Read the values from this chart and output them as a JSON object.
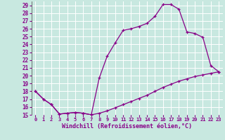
{
  "xlabel": "Windchill (Refroidissement éolien,°C)",
  "background_color": "#c8e8e0",
  "line_color": "#880088",
  "grid_color": "#ffffff",
  "xlim": [
    -0.5,
    23.5
  ],
  "ylim": [
    15,
    29.5
  ],
  "xticks": [
    0,
    1,
    2,
    3,
    4,
    5,
    6,
    7,
    8,
    9,
    10,
    11,
    12,
    13,
    14,
    15,
    16,
    17,
    18,
    19,
    20,
    21,
    22,
    23
  ],
  "yticks": [
    15,
    16,
    17,
    18,
    19,
    20,
    21,
    22,
    23,
    24,
    25,
    26,
    27,
    28,
    29
  ],
  "line1_x": [
    0,
    1,
    2,
    3,
    4,
    5,
    6,
    7,
    8,
    9,
    10,
    11,
    12,
    13,
    14,
    15,
    16,
    17,
    18,
    19,
    20,
    21,
    22,
    23
  ],
  "line1_y": [
    18,
    17,
    16.3,
    15.1,
    15.2,
    15.3,
    15.2,
    15.0,
    15.2,
    15.5,
    15.9,
    16.3,
    16.7,
    17.1,
    17.5,
    18.0,
    18.5,
    18.9,
    19.3,
    19.6,
    19.9,
    20.1,
    20.3,
    20.5
  ],
  "line2_x": [
    0,
    1,
    2,
    3,
    4,
    5,
    6,
    7,
    8,
    9,
    10,
    11,
    12,
    13,
    14,
    15,
    16,
    17,
    18,
    19,
    20,
    21,
    22,
    23
  ],
  "line2_y": [
    18,
    17,
    16.3,
    15.1,
    15.2,
    15.3,
    15.2,
    15.0,
    19.7,
    22.5,
    24.2,
    25.8,
    26.0,
    26.3,
    26.7,
    27.6,
    29.1,
    29.1,
    28.5,
    25.6,
    25.4,
    24.9,
    21.3,
    20.5
  ]
}
